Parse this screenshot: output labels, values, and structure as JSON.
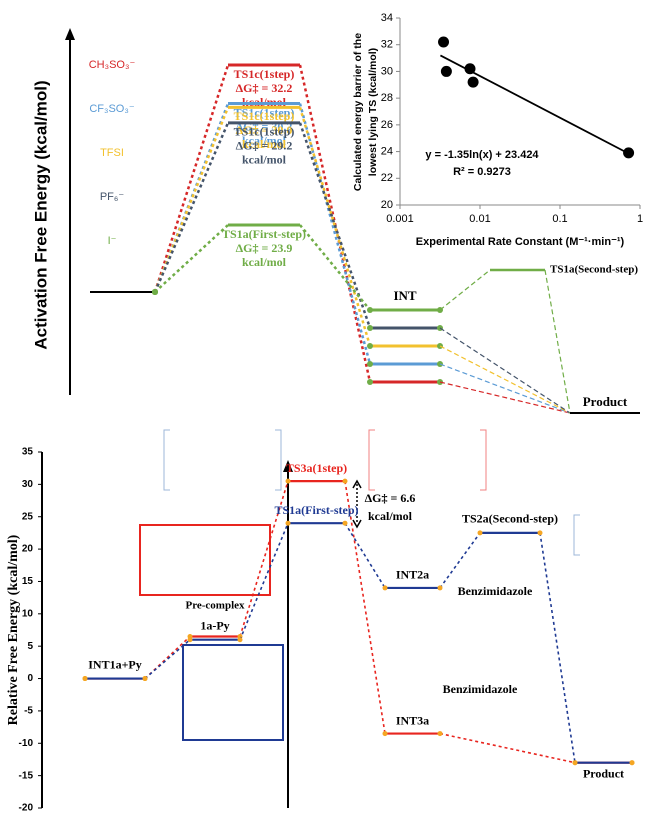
{
  "chart_data": [
    {
      "type": "profile",
      "ylabel": "Activation Free Energy (kcal/mol)",
      "unit": "kcal/mol",
      "series": [
        {
          "name": "CH₃SO₃⁻",
          "color": "#d62728",
          "ts_label": "TS1c(1step)",
          "values": [
            32.2
          ],
          "value_labels": [
            "ΔG‡ = 32.2"
          ]
        },
        {
          "name": "CF₃SO₃⁻",
          "color": "#5b9bd5",
          "ts_label": "TS1c(1step)",
          "values": [
            30.2
          ],
          "value_labels": [
            "ΔG‡ = 30.2"
          ]
        },
        {
          "name": "TFSI",
          "color": "#f2c12e",
          "ts_label": "TS1c(1step)",
          "values": [
            30.0
          ],
          "value_labels": [
            "ΔG‡ = 30.0"
          ]
        },
        {
          "name": "PF₆⁻",
          "color": "#44546a",
          "ts_label": "TS1c(1step)",
          "values": [
            29.2
          ],
          "value_labels": [
            "ΔG‡ = 29.2"
          ]
        },
        {
          "name": "I⁻",
          "color": "#70ad47",
          "ts_label": "TS1a(First-step)",
          "values": [
            23.9
          ],
          "value_labels": [
            "ΔG‡ = 23.9"
          ]
        }
      ],
      "int_label": "INT",
      "ts2_label": "TS1a(Second-step)",
      "product_label": "Product"
    },
    {
      "type": "scatter",
      "xlabel": "Experimental Rate Constant (M⁻¹·min⁻¹)",
      "ylabel": [
        "Calculated energy barrier of the",
        "lowest lying TS (kcal/mol)"
      ],
      "x": [
        0.0035,
        0.0038,
        0.0075,
        0.0082,
        0.72
      ],
      "y": [
        32.2,
        30.0,
        30.2,
        29.2,
        23.9
      ],
      "log_x": true,
      "xlim": [
        0.001,
        1
      ],
      "xticks": [
        0.001,
        0.01,
        0.1,
        1
      ],
      "ylim": [
        20,
        34
      ],
      "yticks": [
        20,
        22,
        24,
        26,
        28,
        30,
        32,
        34
      ],
      "color": "#000000",
      "trendline": {
        "x": [
          0.0032,
          0.75
        ],
        "y": [
          31.2,
          23.8
        ]
      },
      "annotations": [
        "y = -1.35ln(x) + 23.424",
        "R² = 0.9273"
      ]
    },
    {
      "type": "energy_diagram",
      "ylabel": "Relative Free Energy (kcal/mol)",
      "ylim": [
        -20,
        35
      ],
      "yticks": [
        -20,
        -15,
        -10,
        -5,
        0,
        5,
        10,
        15,
        20,
        25,
        30,
        35
      ],
      "categories": [
        "INT1a+Py",
        "1a-Py",
        null,
        null,
        "TS2a(Second-step)",
        "Product"
      ],
      "series": [
        {
          "color": "#e8251f",
          "labels": [
            null,
            null,
            "TS3a(1step)",
            "INT3a",
            null,
            null
          ],
          "values": [
            0,
            6.5,
            30.5,
            -8.5,
            null,
            -13
          ]
        },
        {
          "color": "#1f3a93",
          "labels": [
            null,
            null,
            "TS1a(First-step)",
            "INT2a",
            null,
            null
          ],
          "values": [
            0,
            6,
            24,
            14,
            22.5,
            -13
          ]
        }
      ],
      "annotations": [
        "Pre-complex",
        "Benzimidazole",
        "Benzimidazole",
        "ΔG‡ = 6.6",
        "kcal/mol"
      ]
    }
  ]
}
